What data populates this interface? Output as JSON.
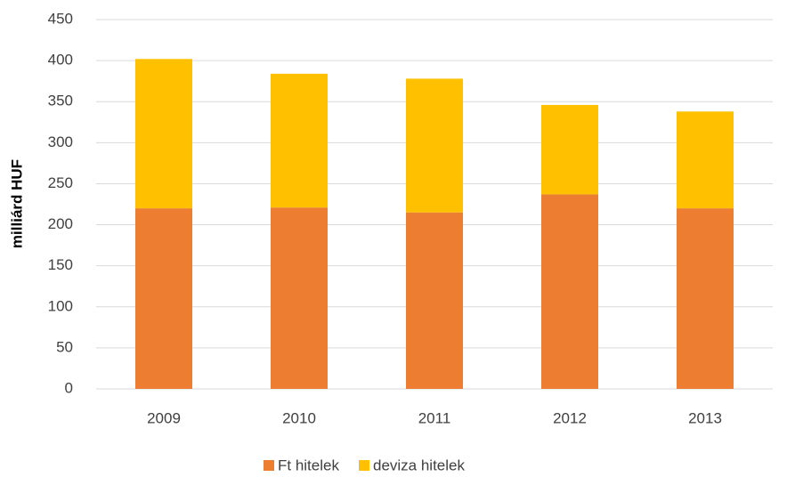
{
  "chart_data": {
    "type": "stacked_bar",
    "ylabel": "milliárd HUF",
    "categories": [
      "2009",
      "2010",
      "2011",
      "2012",
      "2013"
    ],
    "series": [
      {
        "name": "Ft hitelek",
        "color": "#ed7d31",
        "values": [
          220,
          221,
          215,
          237,
          220
        ]
      },
      {
        "name": "deviza hitelek",
        "color": "#ffc000",
        "values": [
          182,
          163,
          163,
          109,
          118
        ]
      }
    ],
    "ylim": [
      0,
      450
    ],
    "yticks": [
      0,
      50,
      100,
      150,
      200,
      250,
      300,
      350,
      400,
      450
    ],
    "grid": true,
    "legend": "bottom"
  }
}
